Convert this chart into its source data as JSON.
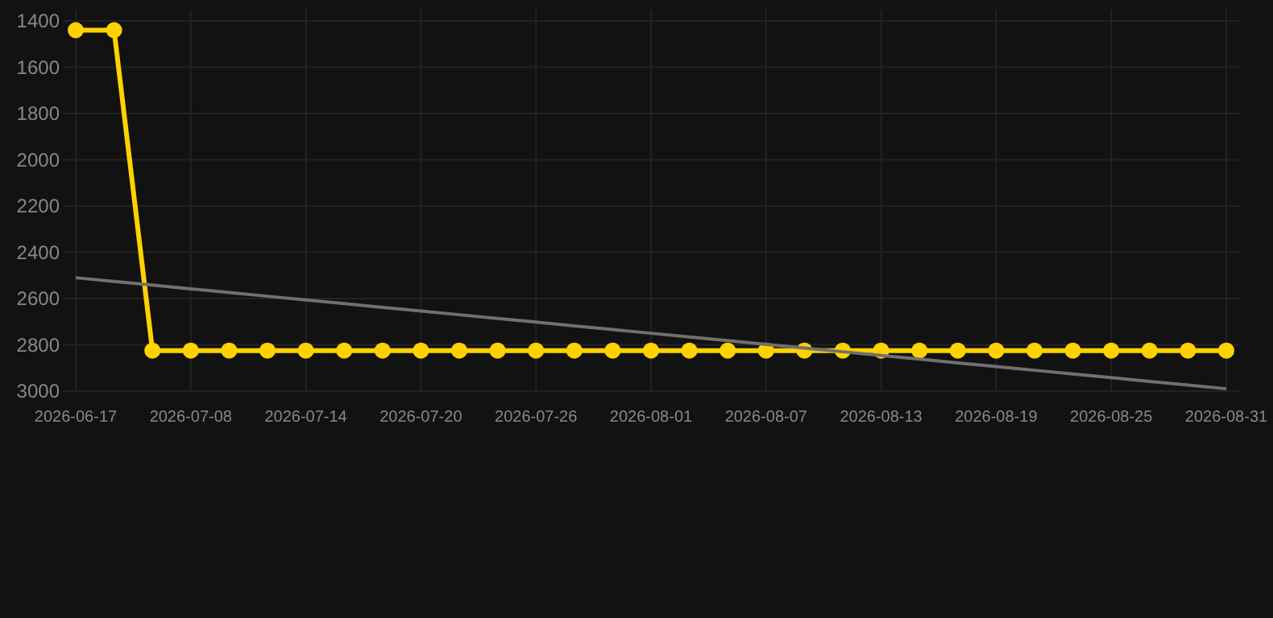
{
  "chart_data": {
    "type": "line",
    "categories": [
      "2026-06-17",
      null,
      null,
      "2026-07-08",
      null,
      null,
      "2026-07-14",
      null,
      null,
      "2026-07-20",
      null,
      null,
      "2026-07-26",
      null,
      null,
      "2026-08-01",
      null,
      null,
      "2026-08-07",
      null,
      null,
      "2026-08-13",
      null,
      null,
      "2026-08-19",
      null,
      null,
      "2026-08-25",
      null,
      null,
      "2026-08-31"
    ],
    "series": [
      {
        "color": "#ffd200",
        "marker": "circle",
        "values": [
          1440,
          1440,
          2825,
          2825,
          2825,
          2825,
          2825,
          2825,
          2825,
          2825,
          2825,
          2825,
          2825,
          2825,
          2825,
          2825,
          2825,
          2825,
          2825,
          2825,
          2825,
          2825,
          2825,
          2825,
          2825,
          2825,
          2825,
          2825,
          2825,
          2825,
          2825
        ]
      },
      {
        "type": "line",
        "color": "#707070",
        "marker": "none",
        "values": [
          2510,
          2526,
          2542,
          2558,
          2574,
          2590,
          2606,
          2622,
          2638,
          2654,
          2670,
          2686,
          2702,
          2718,
          2734,
          2750,
          2766,
          2782,
          2798,
          2814,
          2830,
          2846,
          2862,
          2878,
          2894,
          2910,
          2926,
          2942,
          2958,
          2974,
          2990
        ]
      }
    ],
    "ylim": [
      3000,
      1400
    ],
    "yticks": [
      1400,
      1600,
      1800,
      2000,
      2200,
      2400,
      2600,
      2800,
      3000
    ],
    "grid": true
  }
}
